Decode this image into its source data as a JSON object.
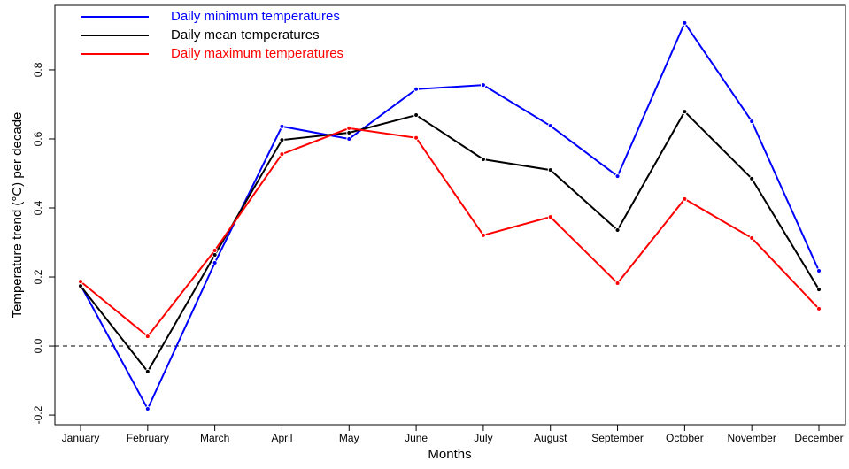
{
  "chart_data": {
    "type": "line",
    "x_label": "Months",
    "y_label": "Temperature trend (°C) per decade",
    "categories": [
      "January",
      "February",
      "March",
      "April",
      "May",
      "June",
      "July",
      "August",
      "September",
      "October",
      "November",
      "December"
    ],
    "series": [
      {
        "name": "Daily minimum temperatures",
        "color": "#0000ff",
        "values": [
          0.177,
          -0.182,
          0.241,
          0.636,
          0.6,
          0.744,
          0.756,
          0.638,
          0.492,
          0.936,
          0.651,
          0.218
        ]
      },
      {
        "name": "Daily mean temperatures",
        "color": "#000000",
        "values": [
          0.174,
          -0.074,
          0.264,
          0.597,
          0.618,
          0.669,
          0.541,
          0.51,
          0.336,
          0.679,
          0.485,
          0.164
        ]
      },
      {
        "name": "Daily maximum temperatures",
        "color": "#ff0000",
        "values": [
          0.187,
          0.028,
          0.277,
          0.556,
          0.631,
          0.603,
          0.321,
          0.374,
          0.182,
          0.426,
          0.313,
          0.108
        ]
      }
    ],
    "ylim": [
      -0.228,
      0.987
    ],
    "yticks": [
      -0.2,
      {
        "value": 0,
        "label": "0.0"
      },
      0.2,
      0.4,
      0.6,
      0.8
    ],
    "hline": 0,
    "legend": "top-left"
  }
}
